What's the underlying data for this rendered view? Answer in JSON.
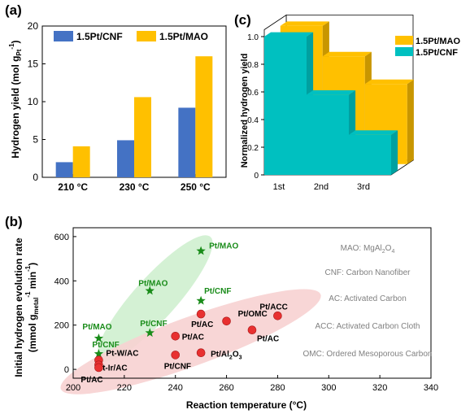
{
  "colors": {
    "cnf_blue": "#4472c4",
    "mao_yellow": "#ffc000",
    "cyan_3d": "#00c0c0",
    "cyan_3d_side": "#00a0a0",
    "yellow_3d_side": "#c89600",
    "green_star": "#1a8c1a",
    "green_ellipse": "#cdeecd",
    "red_dot": "#e83030",
    "red_ellipse": "#f7d2d2",
    "annotation_gray": "#808080"
  },
  "chart_data": [
    {
      "panel_label": "(a)",
      "type": "bar",
      "categories": [
        "210 °C",
        "230 °C",
        "250 °C"
      ],
      "series": [
        {
          "name": "1.5Pt/CNF",
          "color": "#4472c4",
          "values": [
            2.0,
            4.9,
            9.2
          ]
        },
        {
          "name": "1.5Pt/MAO",
          "color": "#ffc000",
          "values": [
            4.1,
            10.6,
            16.0
          ]
        }
      ],
      "ylabel_main": "Hydrogen yield (mol g",
      "ylabel_sub": "Pt",
      "ylabel_sup": "-1",
      "ylabel_close": ")",
      "ylim": [
        0,
        20
      ],
      "yticks": [
        "0",
        "5",
        "10",
        "15",
        "20"
      ],
      "legend": "top"
    },
    {
      "panel_label": "(c)",
      "type": "bar",
      "projection": "3d",
      "categories": [
        "1st",
        "2nd",
        "3rd"
      ],
      "series": [
        {
          "name": "1.5Pt/MAO",
          "color": "#ffc000",
          "values": [
            1.0,
            0.78,
            0.58
          ]
        },
        {
          "name": "1.5Pt/CNF",
          "color": "#00c0c0",
          "values": [
            1.0,
            0.58,
            0.29
          ]
        }
      ],
      "ylabel": "Normalized hydrogen yield",
      "ylim": [
        0,
        1.0
      ],
      "yticks": [
        "0",
        "0.2",
        "0.4",
        "0.6",
        "0.8",
        "1.0"
      ],
      "legend": "top-right"
    },
    {
      "panel_label": "(b)",
      "type": "scatter",
      "xlabel": "Reaction temperature (°C)",
      "ylabel_line1_pre": "(mmol g",
      "ylabel_line1_sub": "metal",
      "ylabel_line1_sup": "-1",
      "ylabel_line1_mid": " min",
      "ylabel_line1_sup2": "-1",
      "ylabel_line1_close": ")",
      "ylabel_line2": "Initial hydrogen evolution rate",
      "xlim": [
        200,
        340
      ],
      "ylim": [
        -40,
        640
      ],
      "xticks": [
        "200",
        "220",
        "240",
        "260",
        "280",
        "300",
        "320",
        "340"
      ],
      "yticks": [
        "0",
        "200",
        "400",
        "600"
      ],
      "green_points": [
        {
          "x": 250,
          "y": 535,
          "label": "Pt/MAO"
        },
        {
          "x": 230,
          "y": 355,
          "label": "Pt/MAO"
        },
        {
          "x": 250,
          "y": 310,
          "label": "Pt/CNF"
        },
        {
          "x": 210,
          "y": 140,
          "label": "Pt/MAO"
        },
        {
          "x": 230,
          "y": 165,
          "label": "Pt/CNF"
        },
        {
          "x": 210,
          "y": 70,
          "label": "Pt/CNF"
        }
      ],
      "red_points": [
        {
          "x": 250,
          "y": 250,
          "label": "Pt/AC"
        },
        {
          "x": 260,
          "y": 218,
          "label": "Pt/OMC"
        },
        {
          "x": 280,
          "y": 242,
          "label": "Pt/ACC"
        },
        {
          "x": 270,
          "y": 178,
          "label": "Pt/AC"
        },
        {
          "x": 240,
          "y": 150,
          "label": "Pt/AC"
        },
        {
          "x": 240,
          "y": 65,
          "label": "Pt/CNF"
        },
        {
          "x": 250,
          "y": 75,
          "label": "Pt/Al",
          "label_sub": "2",
          "label_post": "O",
          "label_sub2": "3"
        },
        {
          "x": 210,
          "y": 42,
          "label": "Pt-W/AC"
        },
        {
          "x": 210,
          "y": 20,
          "label": "Pt-Ir/AC"
        },
        {
          "x": 210,
          "y": 8,
          "label": "Pt/AC"
        }
      ],
      "annotations": [
        {
          "text": "MAO: MgAl",
          "sub": "2",
          "post": "O",
          "sub2": "4"
        },
        {
          "text": "CNF: Carbon Nanofiber"
        },
        {
          "text": "AC: Activated Carbon"
        },
        {
          "text": "ACC: Activated Carbon Cloth"
        },
        {
          "text": "OMC: Ordered Mesoporous Carbon"
        }
      ]
    }
  ]
}
